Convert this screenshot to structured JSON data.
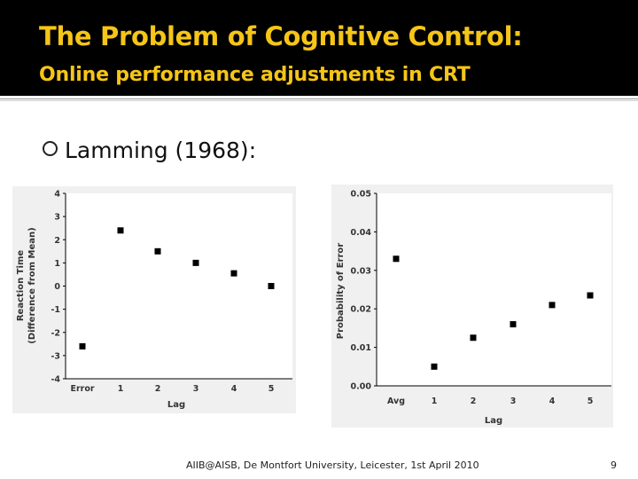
{
  "slide": {
    "title": "The Problem of Cognitive Control:",
    "subtitle": "Online performance adjustments in CRT",
    "bullet": "Lamming (1968):",
    "footer": "AIIB@AISB, De Montfort University, Leicester, 1st April 2010",
    "page_number": "9"
  },
  "colors": {
    "header_bg": "#000000",
    "title": "#f5c518",
    "plot_bg": "#f0f0f0"
  },
  "chart_data": [
    {
      "type": "scatter",
      "categories": [
        "Error",
        "1",
        "2",
        "3",
        "4",
        "5"
      ],
      "values": [
        -2.6,
        2.4,
        1.5,
        1.0,
        0.55,
        0.0
      ],
      "xlabel": "Lag",
      "ylabel": "Reaction Time",
      "ylabel2": "(Difference from Mean)",
      "ylim": [
        -4,
        4
      ],
      "yticks": [
        "4",
        "3",
        "2",
        "1",
        "0",
        "-1",
        "-2",
        "-3",
        "-4"
      ],
      "grid": false
    },
    {
      "type": "scatter",
      "categories": [
        "Avg",
        "1",
        "2",
        "3",
        "4",
        "5"
      ],
      "values": [
        0.033,
        0.005,
        0.0125,
        0.016,
        0.021,
        0.0235
      ],
      "xlabel": "Lag",
      "ylabel": "Probability of Error",
      "ylim": [
        0,
        0.05
      ],
      "yticks": [
        "0.05",
        "0.04",
        "0.03",
        "0.02",
        "0.01",
        "0.00"
      ],
      "grid": false
    }
  ]
}
